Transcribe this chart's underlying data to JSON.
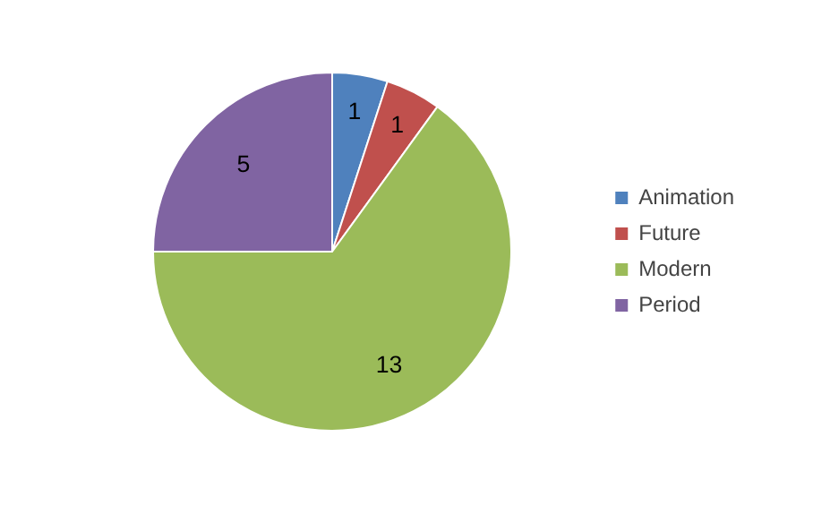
{
  "chart_data": {
    "type": "pie",
    "categories": [
      "Animation",
      "Future",
      "Modern",
      "Period"
    ],
    "values": [
      1,
      1,
      13,
      5
    ],
    "colors": [
      "#4f81bd",
      "#c0504d",
      "#9bbb59",
      "#8064a2"
    ],
    "data_labels": true,
    "legend": "right"
  }
}
